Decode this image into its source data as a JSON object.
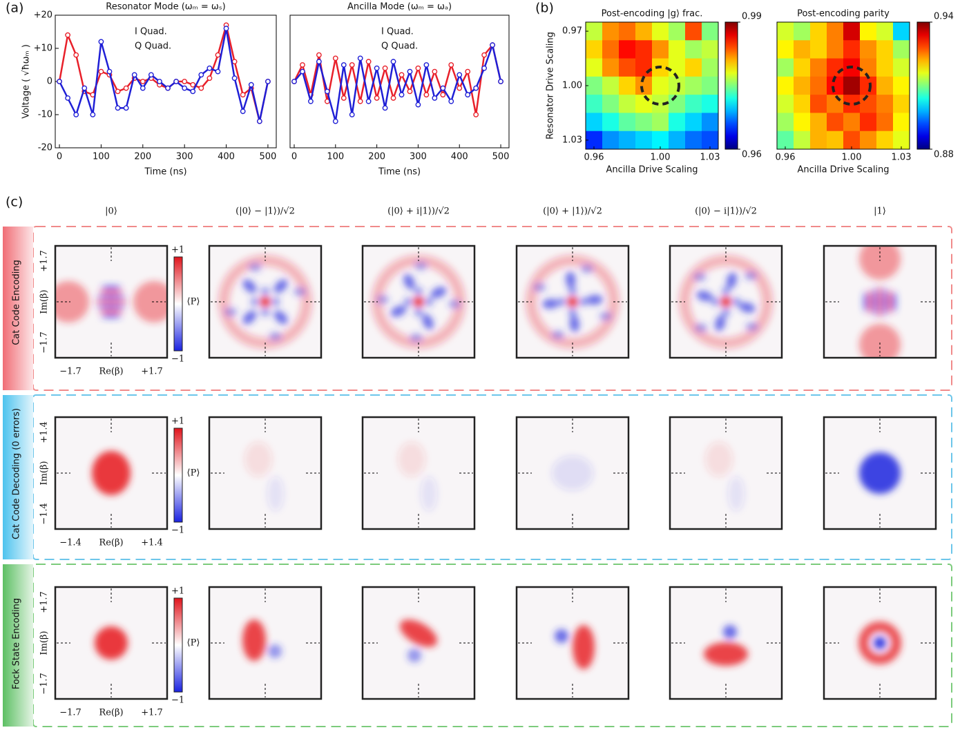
{
  "panel_labels": [
    "(a)",
    "(b)",
    "(c)"
  ],
  "chart_data": [
    {
      "type": "line",
      "title": "Resonator Mode (ωₘ = ωₛ)",
      "xlabel": "Time (ns)",
      "ylabel": "Voltage ( √ħωₘ )",
      "x": [
        0,
        20,
        40,
        60,
        80,
        100,
        120,
        140,
        160,
        180,
        200,
        220,
        240,
        260,
        280,
        300,
        320,
        340,
        360,
        380,
        400,
        420,
        440,
        460,
        480,
        500
      ],
      "series": [
        {
          "name": "I Quad.",
          "color": "#e8202a",
          "values": [
            0,
            14,
            8,
            -3,
            -4,
            3,
            2,
            -3,
            -2,
            1,
            0,
            1,
            -1,
            -2,
            0,
            0,
            -1,
            -2,
            1,
            8,
            17,
            6,
            -4,
            -2,
            -12,
            0
          ]
        },
        {
          "name": "Q Quad.",
          "color": "#1f1fd6",
          "values": [
            0,
            -5,
            -10,
            -2,
            -10,
            12,
            3,
            -8,
            -8,
            2,
            -2,
            2,
            0,
            -2,
            0,
            -2,
            -3,
            2,
            4,
            3,
            16,
            1,
            -9,
            -1,
            -12,
            0
          ]
        }
      ],
      "xlim": [
        -10,
        520
      ],
      "ylim": [
        -20,
        20
      ],
      "xticks": [
        0,
        100,
        200,
        300,
        400,
        500
      ],
      "yticks": [
        {
          "value": 20,
          "label": "+20"
        },
        {
          "value": 10,
          "label": "+10"
        },
        0,
        -10,
        -20
      ]
    },
    {
      "type": "line",
      "title": "Ancilla Mode (ωₘ = ωₐ)",
      "xlabel": "Time (ns)",
      "x": [
        0,
        20,
        40,
        60,
        80,
        100,
        120,
        140,
        160,
        180,
        200,
        220,
        240,
        260,
        280,
        300,
        320,
        340,
        360,
        380,
        400,
        420,
        440,
        460,
        480,
        500
      ],
      "series": [
        {
          "name": "I Quad.",
          "color": "#e8202a",
          "values": [
            0,
            5,
            -4,
            8,
            -6,
            7,
            -5,
            5,
            -6,
            6,
            -5,
            4,
            -5,
            2,
            -3,
            4,
            -4,
            3,
            -4,
            5,
            -2,
            3,
            -10,
            8,
            11,
            0
          ]
        },
        {
          "name": "Q Quad.",
          "color": "#1f1fd6",
          "values": [
            0,
            3,
            -6,
            6,
            -3,
            -12,
            5,
            -10,
            7,
            -6,
            4,
            -8,
            6,
            -4,
            3,
            -7,
            5,
            -5,
            -2,
            -6,
            2,
            -4,
            -2,
            4,
            11,
            0
          ]
        }
      ],
      "xlim": [
        -10,
        520
      ],
      "ylim": [
        -20,
        20
      ],
      "xticks": [
        0,
        100,
        200,
        300,
        400,
        500
      ]
    },
    {
      "type": "heatmap",
      "title": "Post-encoding |g⟩ frac.",
      "xlabel": "Ancilla Drive Scaling",
      "ylabel": "Resonator Drive Scaling",
      "x": [
        0.96,
        0.97,
        0.98,
        0.99,
        1.0,
        1.01,
        1.02,
        1.03
      ],
      "y": [
        0.97,
        0.98,
        0.99,
        1.0,
        1.01,
        1.02,
        1.03
      ],
      "z": [
        [
          0.977,
          0.982,
          0.983,
          0.981,
          0.978,
          0.976,
          0.984,
          0.975
        ],
        [
          0.98,
          0.983,
          0.986,
          0.985,
          0.982,
          0.978,
          0.976,
          0.977
        ],
        [
          0.978,
          0.982,
          0.984,
          0.985,
          0.98,
          0.978,
          0.98,
          0.976
        ],
        [
          0.975,
          0.977,
          0.98,
          0.982,
          0.978,
          0.977,
          0.976,
          0.975
        ],
        [
          0.973,
          0.975,
          0.977,
          0.978,
          0.977,
          0.975,
          0.973,
          0.972
        ],
        [
          0.97,
          0.972,
          0.974,
          0.975,
          0.976,
          0.972,
          0.97,
          0.968
        ],
        [
          0.965,
          0.968,
          0.969,
          0.97,
          0.971,
          0.969,
          0.967,
          0.966
        ]
      ],
      "xlim": [
        0.955,
        1.035
      ],
      "ylim": [
        0.965,
        1.035
      ],
      "y_inverted": true,
      "xticks": [
        0.96,
        {
          "value": 1,
          "label": "1.00"
        },
        1.03
      ],
      "yticks": [
        0.97,
        {
          "value": 1,
          "label": "1.00"
        },
        1.03
      ],
      "zlim": [
        0.96,
        0.99
      ],
      "zticks": [
        0.96,
        0.99
      ],
      "colormap": "jet"
    },
    {
      "type": "heatmap",
      "title": "Post-encoding parity",
      "xlabel": "Ancilla Drive Scaling",
      "x": [
        0.96,
        0.97,
        0.98,
        0.99,
        1.0,
        1.01,
        1.02,
        1.03
      ],
      "y": [
        0.97,
        0.98,
        0.99,
        1.0,
        1.01,
        1.02,
        1.03
      ],
      "z": [
        [
          0.915,
          0.912,
          0.92,
          0.925,
          0.935,
          0.918,
          0.915,
          0.9
        ],
        [
          0.918,
          0.922,
          0.92,
          0.925,
          0.93,
          0.924,
          0.92,
          0.912
        ],
        [
          0.912,
          0.92,
          0.925,
          0.93,
          0.933,
          0.925,
          0.92,
          0.915
        ],
        [
          0.918,
          0.922,
          0.926,
          0.932,
          0.938,
          0.93,
          0.922,
          0.918
        ],
        [
          0.915,
          0.92,
          0.928,
          0.925,
          0.93,
          0.928,
          0.925,
          0.92
        ],
        [
          0.912,
          0.918,
          0.922,
          0.928,
          0.925,
          0.93,
          0.926,
          0.918
        ],
        [
          0.908,
          0.914,
          0.922,
          0.921,
          0.928,
          0.924,
          0.92,
          0.916
        ]
      ],
      "xlim": [
        0.955,
        1.035
      ],
      "ylim": [
        0.965,
        1.035
      ],
      "y_inverted": true,
      "xticks": [
        0.96,
        {
          "value": 1,
          "label": "1.00"
        },
        1.03
      ],
      "zlim": [
        0.88,
        0.94
      ],
      "zticks": [
        0.88,
        0.94
      ],
      "colormap": "jet"
    }
  ],
  "wigner": {
    "columns": [
      "|0⟩",
      "(|0⟩ − |1⟩)/√2",
      "(|0⟩ + i|1⟩)/√2",
      "(|0⟩ + |1⟩)/√2",
      "(|0⟩ − i|1⟩)/√2",
      "|1⟩"
    ],
    "rows": [
      {
        "label": "Cat Code Encoding",
        "axis_min": "−1.7",
        "axis_max": "+1.7"
      },
      {
        "label": "Cat Code Decoding (0 errors)",
        "axis_min": "−1.4",
        "axis_max": "+1.4"
      },
      {
        "label": "Fock State Encoding",
        "axis_min": "−1.7",
        "axis_max": "+1.7"
      }
    ],
    "x_axis_label": "Re(β)",
    "y_axis_label": "Im(β)",
    "colorbar_max": "+1",
    "colorbar_min": "−1",
    "colorbar_label": "⟨P⟩"
  }
}
